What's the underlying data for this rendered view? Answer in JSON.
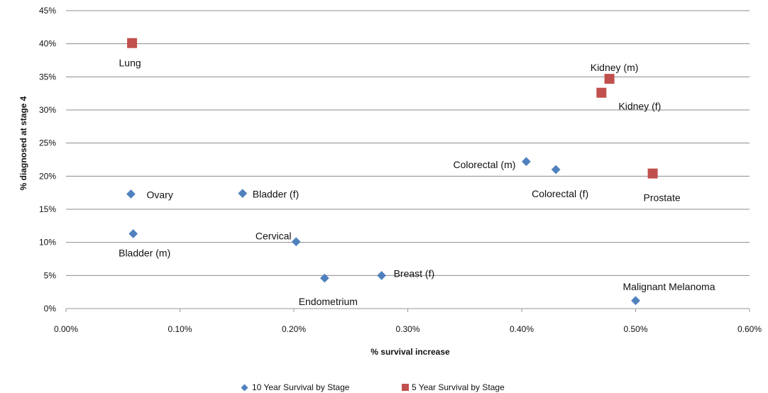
{
  "chart_data": {
    "type": "scatter",
    "xlabel": "% survival increase",
    "ylabel": "% diagnosed at stage 4",
    "xlim": [
      0,
      0.6
    ],
    "ylim": [
      0,
      45
    ],
    "x_ticks": [
      "0.00%",
      "0.10%",
      "0.20%",
      "0.30%",
      "0.40%",
      "0.50%",
      "0.60%"
    ],
    "y_ticks": [
      "0%",
      "5%",
      "10%",
      "15%",
      "20%",
      "25%",
      "30%",
      "35%",
      "40%",
      "45%"
    ],
    "grid": "horizontal",
    "legend_position": "bottom",
    "series": [
      {
        "name": "10 Year Survival by Stage",
        "marker": "diamond",
        "color": "#4f81bd",
        "points": [
          {
            "label": "Ovary",
            "x": 0.057,
            "y": 17.3
          },
          {
            "label": "Bladder (m)",
            "x": 0.059,
            "y": 11.3
          },
          {
            "label": "Bladder (f)",
            "x": 0.155,
            "y": 17.4
          },
          {
            "label": "Cervical",
            "x": 0.202,
            "y": 10.1
          },
          {
            "label": "Endometrium",
            "x": 0.227,
            "y": 4.6
          },
          {
            "label": "Breast (f)",
            "x": 0.277,
            "y": 5.0
          },
          {
            "label": "Colorectal (m)",
            "x": 0.404,
            "y": 22.2
          },
          {
            "label": "Colorectal (f)",
            "x": 0.43,
            "y": 21.0
          },
          {
            "label": "Malignant Melanoma",
            "x": 0.5,
            "y": 1.2
          }
        ]
      },
      {
        "name": "5 Year Survival by Stage",
        "marker": "square",
        "color": "#c0504d",
        "points": [
          {
            "label": "Lung",
            "x": 0.058,
            "y": 40.1
          },
          {
            "label": "Kidney (m)",
            "x": 0.477,
            "y": 34.7
          },
          {
            "label": "Kidney (f)",
            "x": 0.47,
            "y": 32.6
          },
          {
            "label": "Prostate",
            "x": 0.515,
            "y": 20.4
          }
        ]
      }
    ]
  }
}
